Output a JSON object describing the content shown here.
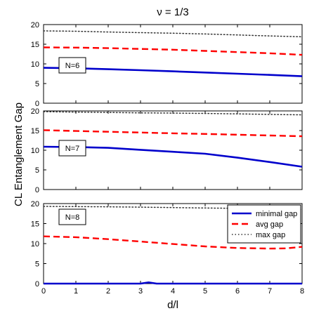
{
  "figure": {
    "title": "ν = 1/3",
    "ylabel": "CL Entanglement Gap",
    "xlabel": "d/l"
  },
  "chart_data": [
    {
      "type": "line",
      "title": "ν = 1/3",
      "annotation": "N=6",
      "xlim": [
        0,
        8
      ],
      "ylim": [
        0,
        20
      ],
      "yticks": [
        0,
        5,
        10,
        15,
        20
      ],
      "grid": false,
      "series": [
        {
          "key": "minimal",
          "color": "#0000cc",
          "style": "solid",
          "x": [
            0,
            1,
            2,
            3,
            4,
            5,
            6,
            7,
            8
          ],
          "y": [
            9.0,
            8.9,
            8.65,
            8.4,
            8.1,
            7.8,
            7.5,
            7.2,
            6.85
          ]
        },
        {
          "key": "avg",
          "color": "#ff0000",
          "style": "dashed",
          "x": [
            0,
            1,
            2,
            3,
            4,
            5,
            6,
            7,
            8
          ],
          "y": [
            14.2,
            14.15,
            14.0,
            13.8,
            13.6,
            13.3,
            13.0,
            12.7,
            12.3
          ]
        },
        {
          "key": "max",
          "color": "#333333",
          "style": "dotted",
          "x": [
            0,
            1,
            2,
            3,
            4,
            5,
            6,
            7,
            8
          ],
          "y": [
            18.4,
            18.3,
            18.1,
            17.95,
            17.8,
            17.6,
            17.35,
            17.1,
            16.9
          ]
        }
      ]
    },
    {
      "type": "line",
      "annotation": "N=7",
      "xlim": [
        0,
        8
      ],
      "ylim": [
        0,
        20
      ],
      "yticks": [
        0,
        5,
        10,
        15,
        20
      ],
      "grid": false,
      "series": [
        {
          "key": "minimal",
          "color": "#0000cc",
          "style": "solid",
          "x": [
            0,
            1,
            2,
            3,
            4,
            5,
            6,
            7,
            8
          ],
          "y": [
            10.9,
            10.8,
            10.6,
            10.1,
            9.6,
            9.1,
            8.1,
            7.0,
            5.8
          ]
        },
        {
          "key": "avg",
          "color": "#ff0000",
          "style": "dashed",
          "x": [
            0,
            1,
            2,
            3,
            4,
            5,
            6,
            7,
            8
          ],
          "y": [
            15.1,
            14.9,
            14.7,
            14.5,
            14.3,
            14.15,
            13.95,
            13.75,
            13.55
          ]
        },
        {
          "key": "max",
          "color": "#333333",
          "style": "dotted",
          "x": [
            0,
            1,
            2,
            3,
            4,
            5,
            6,
            7,
            8
          ],
          "y": [
            19.8,
            19.7,
            19.6,
            19.5,
            19.45,
            19.35,
            19.25,
            19.1,
            19.0
          ]
        }
      ]
    },
    {
      "type": "line",
      "annotation": "N=8",
      "xlim": [
        0,
        8
      ],
      "ylim": [
        0,
        20
      ],
      "yticks": [
        0,
        5,
        10,
        15,
        20
      ],
      "xticks": [
        0,
        1,
        2,
        3,
        4,
        5,
        6,
        7,
        8
      ],
      "grid": false,
      "legend": {
        "placement": "top-right",
        "entries": [
          {
            "label": "minimal gap",
            "key": "minimal"
          },
          {
            "label": "avg gap",
            "key": "avg"
          },
          {
            "label": "max gap",
            "key": "max"
          }
        ]
      },
      "series": [
        {
          "key": "minimal",
          "color": "#0000cc",
          "style": "solid",
          "x": [
            0,
            3.0,
            3.25,
            3.5,
            8
          ],
          "y": [
            0,
            0,
            0.3,
            0,
            0
          ]
        },
        {
          "key": "avg",
          "color": "#ff0000",
          "style": "dashed",
          "x": [
            0,
            1,
            2,
            3,
            4,
            5,
            6,
            7,
            7.5,
            8
          ],
          "y": [
            11.8,
            11.6,
            11.1,
            10.5,
            9.9,
            9.3,
            8.9,
            8.75,
            8.8,
            9.2
          ]
        },
        {
          "key": "max",
          "color": "#333333",
          "style": "dotted",
          "x": [
            0,
            1,
            2,
            3,
            4,
            5,
            6,
            7,
            8
          ],
          "y": [
            19.3,
            19.25,
            19.2,
            19.1,
            19.0,
            18.9,
            18.8,
            18.7,
            18.55
          ]
        }
      ]
    }
  ]
}
